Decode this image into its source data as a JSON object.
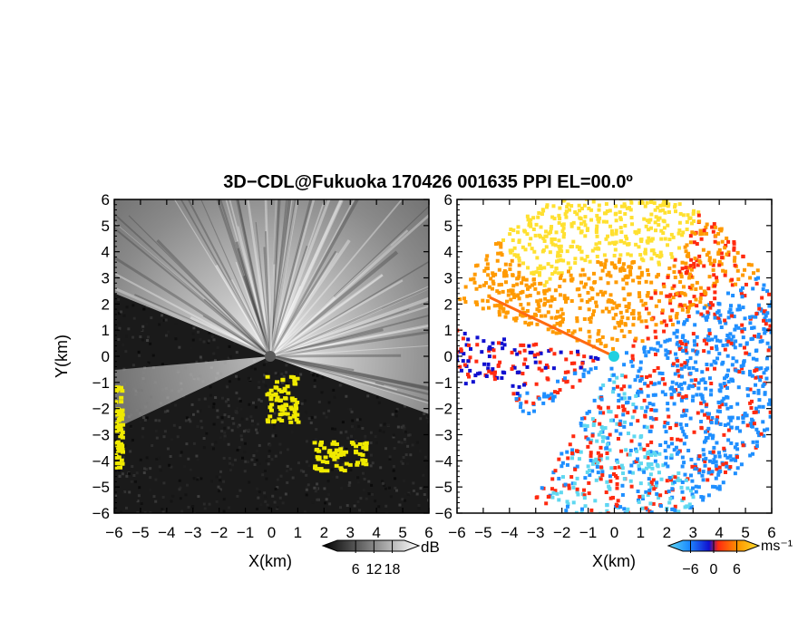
{
  "title": "3D−CDL@Fukuoka 170426 001635 PPI EL=00.0º",
  "chart_data": [
    {
      "type": "heatmap",
      "panel": "left",
      "quantity": "signal intensity",
      "xlabel": "X(km)",
      "ylabel": "Y(km)",
      "xlim": [
        -6,
        6
      ],
      "ylim": [
        -6,
        6
      ],
      "xticks": [
        "−6",
        "−5",
        "−4",
        "−3",
        "−2",
        "−1",
        "0",
        "1",
        "2",
        "3",
        "4",
        "5",
        "6"
      ],
      "yticks": [
        "−6",
        "−5",
        "−4",
        "−3",
        "−2",
        "−1",
        "0",
        "1",
        "2",
        "3",
        "4",
        "5",
        "6"
      ],
      "colorbar": {
        "unit": "dB",
        "ticks": [
          "6",
          "12",
          "18"
        ],
        "tick_values": [
          6,
          12,
          18
        ],
        "range": [
          0,
          22
        ],
        "colors": [
          "#000000",
          "#ffffff"
        ],
        "missing_color": "#f0ea00"
      },
      "background_color": "#1a1a1a",
      "radar_origin": [
        0,
        0
      ],
      "features": {
        "bright_sector_deg": [
          -20,
          158
        ],
        "dark_wedges_deg": [
          [
            158,
            185
          ],
          [
            205,
            300
          ]
        ],
        "yellow_patches": [
          {
            "x": [
              -0.2,
              1.0
            ],
            "y": [
              -2.5,
              -0.7
            ]
          },
          {
            "x": [
              1.6,
              3.6
            ],
            "y": [
              -4.3,
              -3.2
            ]
          },
          {
            "x": [
              -6.0,
              -5.7
            ],
            "y": [
              -4.2,
              -1.1
            ]
          }
        ]
      }
    },
    {
      "type": "heatmap",
      "panel": "right",
      "quantity": "radial velocity",
      "xlabel": "X(km)",
      "ylabel": "",
      "xlim": [
        -6,
        6
      ],
      "ylim": [
        -6,
        6
      ],
      "xticks": [
        "−6",
        "−5",
        "−4",
        "−3",
        "−2",
        "−1",
        "0",
        "1",
        "2",
        "3",
        "4",
        "5",
        "6"
      ],
      "yticks": [
        "−6",
        "−5",
        "−4",
        "−3",
        "−2",
        "−1",
        "0",
        "1",
        "2",
        "3",
        "4",
        "5",
        "6"
      ],
      "colorbar": {
        "unit": "ms⁻¹",
        "ticks": [
          "−6",
          "0",
          "6"
        ],
        "tick_values": [
          -6,
          0,
          6
        ],
        "range": [
          -8,
          8
        ],
        "colors": [
          "#5fd8f0",
          "#1f8fff",
          "#1010d0",
          "#ff2a10",
          "#ff9a00",
          "#ffe030"
        ]
      },
      "background_color": "#ffffff",
      "radar_origin": [
        0,
        0
      ],
      "features": {
        "approaching_sector_deg": [
          -60,
          30
        ],
        "receding_sector_deg": [
          30,
          130
        ],
        "origin_marker_color": "#20d0e0"
      }
    }
  ]
}
